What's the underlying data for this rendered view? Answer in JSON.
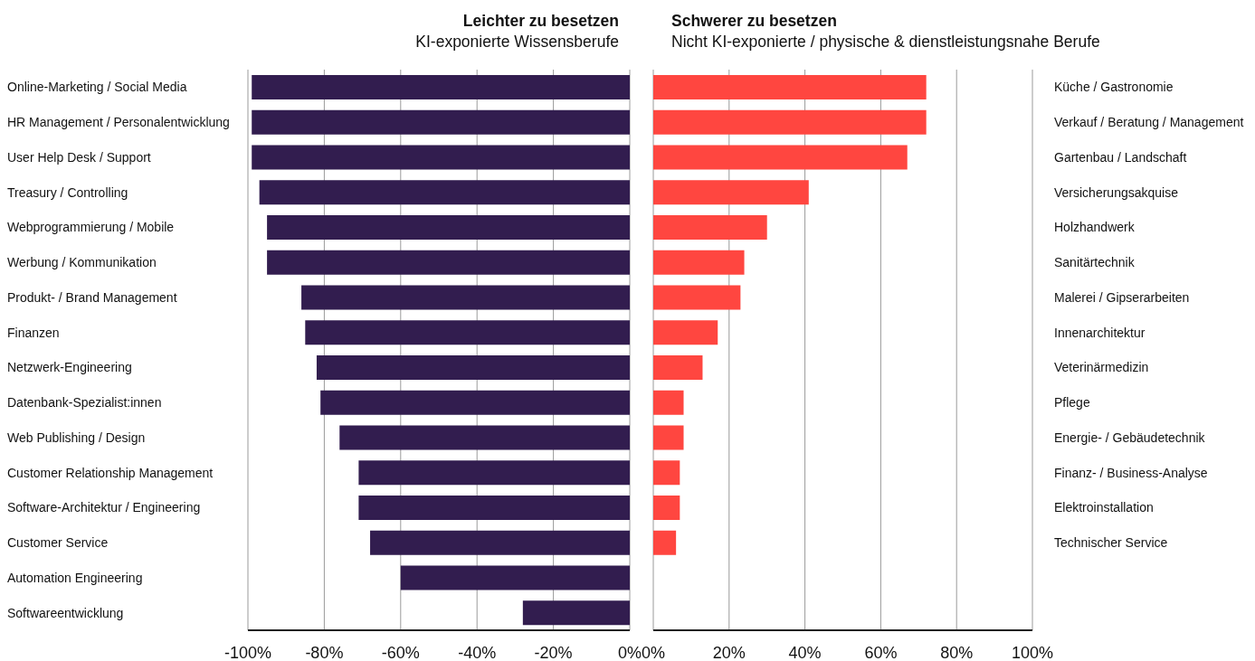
{
  "chart_data": [
    {
      "type": "bar",
      "orientation": "horizontal",
      "title": "Leichter zu besetzen",
      "subtitle": "KI-exponierte Wissensberufe",
      "categories": [
        "Online-Marketing / Social Media",
        "HR Management / Personalentwicklung",
        "User Help Desk / Support",
        "Treasury / Controlling",
        "Webprogrammierung / Mobile",
        "Werbung / Kommunikation",
        "Produkt- / Brand Management",
        "Finanzen",
        "Netzwerk-Engineering",
        "Datenbank-Spezialist:innen",
        "Web Publishing / Design",
        "Customer Relationship Management",
        "Software-Architektur / Engineering",
        "Customer Service",
        "Automation Engineering",
        "Softwareentwicklung"
      ],
      "series": [
        {
          "color": "#321d4f",
          "values": [
            -99,
            -99,
            -99,
            -97,
            -95,
            -95,
            -86,
            -85,
            -82,
            -81,
            -76,
            -71,
            -71,
            -68,
            -60,
            -28
          ]
        }
      ],
      "xlim": [
        -100,
        0
      ],
      "xticks": [
        {
          "value": -100,
          "label": "-100%"
        },
        {
          "value": -80,
          "label": "-80%"
        },
        {
          "value": -60,
          "label": "-60%"
        },
        {
          "value": -40,
          "label": "-40%"
        },
        {
          "value": -20,
          "label": "-20%"
        },
        {
          "value": 0,
          "label": "0%"
        }
      ],
      "grid": "x"
    },
    {
      "type": "bar",
      "orientation": "horizontal",
      "title": "Schwerer zu besetzen",
      "subtitle": "Nicht KI-exponierte / physische & dienstleistungsnahe Berufe",
      "categories": [
        "Küche / Gastronomie",
        "Verkauf / Beratung / Management",
        "Gartenbau / Landschaft",
        "Versicherungsakquise",
        "Holzhandwerk",
        "Sanitärtechnik",
        "Malerei / Gipserarbeiten",
        "Innenarchitektur",
        "Veterinärmedizin",
        "Pflege",
        "Energie- / Gebäudetechnik",
        "Finanz- / Business-Analyse",
        "Elektroinstallation",
        "Technischer Service",
        null,
        null
      ],
      "series": [
        {
          "color": "#ff4640",
          "values": [
            72,
            72,
            67,
            41,
            30,
            24,
            23,
            17,
            13,
            8,
            8,
            7,
            7,
            6,
            null,
            null
          ]
        }
      ],
      "xlim": [
        0,
        100
      ],
      "xticks": [
        {
          "value": 0,
          "label": "0%"
        },
        {
          "value": 20,
          "label": "20%"
        },
        {
          "value": 40,
          "label": "40%"
        },
        {
          "value": 60,
          "label": "60%"
        },
        {
          "value": 80,
          "label": "80%"
        },
        {
          "value": 100,
          "label": "100%"
        }
      ],
      "grid": "x"
    }
  ]
}
